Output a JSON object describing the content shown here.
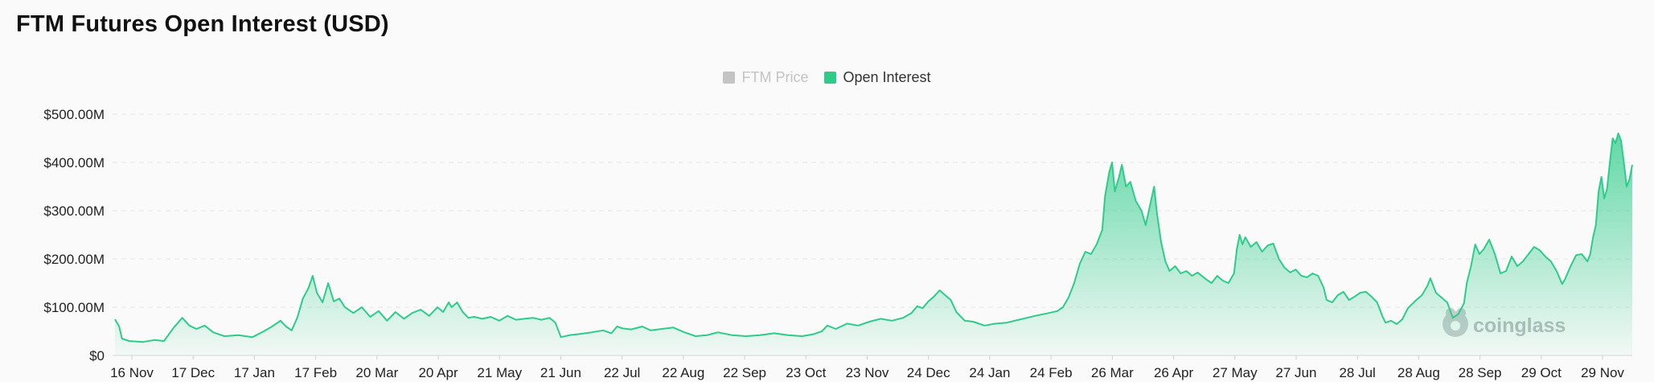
{
  "chart_data": {
    "type": "area",
    "title": "FTM Futures Open Interest (USD)",
    "legend": {
      "placement": "top-center",
      "entries": [
        {
          "label": "FTM Price",
          "color": "#c4c4c4",
          "active": false
        },
        {
          "label": "Open Interest",
          "color": "#2ecc8a",
          "active": true
        }
      ]
    },
    "x_tick_labels": [
      "16 Nov",
      "17 Dec",
      "17 Jan",
      "17 Feb",
      "20 Mar",
      "20 Apr",
      "21 May",
      "21 Jun",
      "22 Jul",
      "22 Aug",
      "22 Sep",
      "23 Oct",
      "23 Nov",
      "24 Dec",
      "24 Jan",
      "24 Feb",
      "26 Mar",
      "26 Apr",
      "27 May",
      "27 Jun",
      "28 Jul",
      "28 Aug",
      "28 Sep",
      "29 Oct",
      "29 Nov"
    ],
    "y_tick_labels": [
      "$0",
      "$100.00M",
      "$200.00M",
      "$300.00M",
      "$400.00M",
      "$500.00M"
    ],
    "y_tick_values": [
      0,
      100,
      200,
      300,
      400,
      500
    ],
    "ylim": [
      0,
      500
    ],
    "y_unit": "USD millions",
    "grid": true,
    "series": [
      {
        "name": "Open Interest",
        "color": "#2ecc8a",
        "values": [
          [
            0,
            75
          ],
          [
            3,
            60
          ],
          [
            5,
            35
          ],
          [
            10,
            30
          ],
          [
            20,
            28
          ],
          [
            28,
            32
          ],
          [
            35,
            30
          ],
          [
            42,
            58
          ],
          [
            48,
            78
          ],
          [
            53,
            62
          ],
          [
            58,
            55
          ],
          [
            64,
            62
          ],
          [
            70,
            48
          ],
          [
            78,
            40
          ],
          [
            88,
            42
          ],
          [
            98,
            38
          ],
          [
            106,
            50
          ],
          [
            112,
            60
          ],
          [
            118,
            72
          ],
          [
            122,
            60
          ],
          [
            126,
            52
          ],
          [
            130,
            78
          ],
          [
            134,
            118
          ],
          [
            138,
            140
          ],
          [
            141,
            165
          ],
          [
            144,
            130
          ],
          [
            148,
            110
          ],
          [
            152,
            150
          ],
          [
            156,
            112
          ],
          [
            160,
            118
          ],
          [
            164,
            100
          ],
          [
            170,
            88
          ],
          [
            176,
            100
          ],
          [
            182,
            80
          ],
          [
            188,
            92
          ],
          [
            194,
            72
          ],
          [
            200,
            90
          ],
          [
            206,
            76
          ],
          [
            212,
            88
          ],
          [
            218,
            95
          ],
          [
            224,
            82
          ],
          [
            230,
            100
          ],
          [
            234,
            90
          ],
          [
            238,
            110
          ],
          [
            240,
            100
          ],
          [
            244,
            110
          ],
          [
            248,
            90
          ],
          [
            252,
            78
          ],
          [
            256,
            80
          ],
          [
            262,
            76
          ],
          [
            268,
            80
          ],
          [
            274,
            72
          ],
          [
            280,
            82
          ],
          [
            286,
            74
          ],
          [
            292,
            76
          ],
          [
            298,
            78
          ],
          [
            304,
            74
          ],
          [
            310,
            78
          ],
          [
            314,
            68
          ],
          [
            318,
            38
          ],
          [
            324,
            42
          ],
          [
            330,
            44
          ],
          [
            340,
            48
          ],
          [
            348,
            52
          ],
          [
            354,
            46
          ],
          [
            358,
            60
          ],
          [
            362,
            56
          ],
          [
            368,
            54
          ],
          [
            376,
            60
          ],
          [
            382,
            52
          ],
          [
            390,
            55
          ],
          [
            398,
            58
          ],
          [
            406,
            48
          ],
          [
            414,
            40
          ],
          [
            422,
            42
          ],
          [
            430,
            48
          ],
          [
            440,
            42
          ],
          [
            450,
            40
          ],
          [
            460,
            42
          ],
          [
            470,
            46
          ],
          [
            480,
            42
          ],
          [
            490,
            40
          ],
          [
            498,
            44
          ],
          [
            504,
            50
          ],
          [
            508,
            62
          ],
          [
            514,
            55
          ],
          [
            522,
            66
          ],
          [
            530,
            62
          ],
          [
            538,
            70
          ],
          [
            546,
            76
          ],
          [
            554,
            72
          ],
          [
            562,
            78
          ],
          [
            568,
            88
          ],
          [
            572,
            102
          ],
          [
            576,
            98
          ],
          [
            580,
            112
          ],
          [
            584,
            122
          ],
          [
            588,
            135
          ],
          [
            592,
            125
          ],
          [
            596,
            115
          ],
          [
            600,
            90
          ],
          [
            606,
            72
          ],
          [
            612,
            70
          ],
          [
            620,
            62
          ],
          [
            628,
            66
          ],
          [
            636,
            68
          ],
          [
            646,
            75
          ],
          [
            656,
            82
          ],
          [
            666,
            88
          ],
          [
            672,
            92
          ],
          [
            676,
            100
          ],
          [
            680,
            120
          ],
          [
            684,
            150
          ],
          [
            688,
            190
          ],
          [
            692,
            215
          ],
          [
            696,
            210
          ],
          [
            700,
            230
          ],
          [
            704,
            260
          ],
          [
            706,
            330
          ],
          [
            709,
            380
          ],
          [
            711,
            400
          ],
          [
            713,
            340
          ],
          [
            716,
            370
          ],
          [
            718,
            395
          ],
          [
            721,
            350
          ],
          [
            724,
            360
          ],
          [
            728,
            320
          ],
          [
            732,
            300
          ],
          [
            735,
            270
          ],
          [
            738,
            310
          ],
          [
            741,
            350
          ],
          [
            743,
            295
          ],
          [
            746,
            235
          ],
          [
            749,
            195
          ],
          [
            752,
            175
          ],
          [
            756,
            185
          ],
          [
            760,
            170
          ],
          [
            764,
            175
          ],
          [
            768,
            165
          ],
          [
            772,
            172
          ],
          [
            778,
            158
          ],
          [
            782,
            150
          ],
          [
            786,
            165
          ],
          [
            790,
            155
          ],
          [
            794,
            150
          ],
          [
            798,
            170
          ],
          [
            800,
            220
          ],
          [
            802,
            250
          ],
          [
            804,
            230
          ],
          [
            806,
            245
          ],
          [
            810,
            225
          ],
          [
            814,
            235
          ],
          [
            818,
            215
          ],
          [
            822,
            228
          ],
          [
            826,
            232
          ],
          [
            830,
            200
          ],
          [
            834,
            182
          ],
          [
            838,
            172
          ],
          [
            842,
            178
          ],
          [
            846,
            165
          ],
          [
            850,
            162
          ],
          [
            854,
            170
          ],
          [
            858,
            165
          ],
          [
            862,
            140
          ],
          [
            864,
            115
          ],
          [
            868,
            110
          ],
          [
            872,
            125
          ],
          [
            876,
            132
          ],
          [
            880,
            115
          ],
          [
            884,
            122
          ],
          [
            888,
            130
          ],
          [
            892,
            132
          ],
          [
            896,
            122
          ],
          [
            900,
            110
          ],
          [
            904,
            80
          ],
          [
            906,
            68
          ],
          [
            910,
            72
          ],
          [
            914,
            65
          ],
          [
            918,
            75
          ],
          [
            922,
            98
          ],
          [
            928,
            115
          ],
          [
            932,
            125
          ],
          [
            936,
            145
          ],
          [
            938,
            160
          ],
          [
            942,
            130
          ],
          [
            946,
            120
          ],
          [
            950,
            110
          ],
          [
            954,
            78
          ],
          [
            958,
            86
          ],
          [
            962,
            108
          ],
          [
            964,
            150
          ],
          [
            967,
            185
          ],
          [
            970,
            230
          ],
          [
            973,
            210
          ],
          [
            976,
            220
          ],
          [
            980,
            240
          ],
          [
            984,
            210
          ],
          [
            988,
            170
          ],
          [
            992,
            175
          ],
          [
            996,
            205
          ],
          [
            1000,
            185
          ],
          [
            1004,
            195
          ],
          [
            1008,
            210
          ],
          [
            1012,
            225
          ],
          [
            1016,
            218
          ],
          [
            1020,
            205
          ],
          [
            1024,
            195
          ],
          [
            1028,
            175
          ],
          [
            1032,
            148
          ],
          [
            1034,
            158
          ],
          [
            1038,
            185
          ],
          [
            1042,
            208
          ],
          [
            1046,
            210
          ],
          [
            1050,
            195
          ],
          [
            1052,
            210
          ],
          [
            1054,
            245
          ],
          [
            1056,
            270
          ],
          [
            1058,
            340
          ],
          [
            1060,
            370
          ],
          [
            1062,
            325
          ],
          [
            1064,
            345
          ],
          [
            1066,
            400
          ],
          [
            1068,
            450
          ],
          [
            1070,
            440
          ],
          [
            1072,
            460
          ],
          [
            1074,
            445
          ],
          [
            1076,
            400
          ],
          [
            1078,
            350
          ],
          [
            1080,
            365
          ],
          [
            1082,
            395
          ]
        ]
      }
    ],
    "x_index_range": [
      0,
      1082
    ],
    "watermark": "coinglass"
  }
}
